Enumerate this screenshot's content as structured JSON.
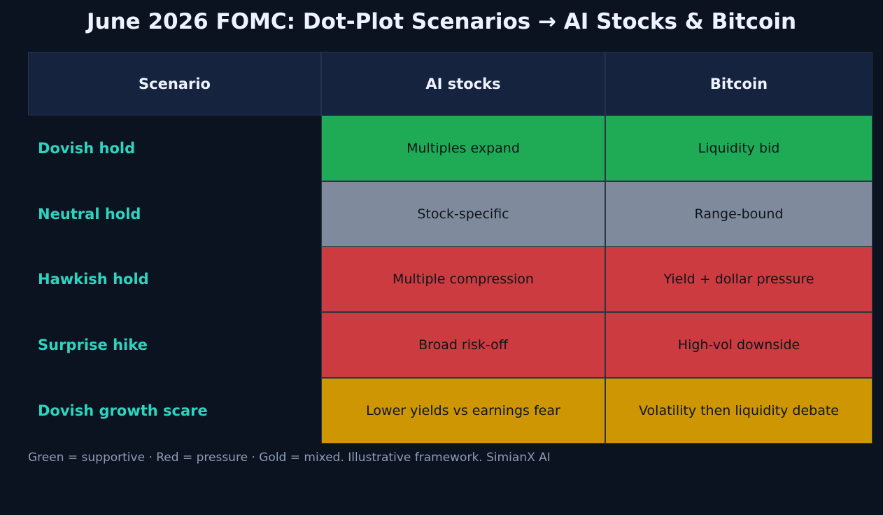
{
  "title": "June 2026 FOMC: Dot-Plot Scenarios → AI Stocks & Bitcoin",
  "footnote": "Green = supportive · Red = pressure · Gold = mixed. Illustrative framework. SimianX AI",
  "colors": {
    "background": "#0c1320",
    "header_bg": "#16233e",
    "scenario_text": "#2dd4bf",
    "supportive": "#1fab55",
    "neutral": "#7f8b9d",
    "pressure": "#cb3b3f",
    "mixed": "#ce9602"
  },
  "chart_data": {
    "type": "table",
    "columns": [
      "Scenario",
      "AI stocks",
      "Bitcoin"
    ],
    "rows": [
      {
        "scenario": "Dovish hold",
        "ai_stocks": "Multiples expand",
        "bitcoin": "Liquidity bid",
        "ai_tone": "supportive",
        "btc_tone": "supportive"
      },
      {
        "scenario": "Neutral hold",
        "ai_stocks": "Stock-specific",
        "bitcoin": "Range-bound",
        "ai_tone": "neutral",
        "btc_tone": "neutral"
      },
      {
        "scenario": "Hawkish hold",
        "ai_stocks": "Multiple compression",
        "bitcoin": "Yield + dollar pressure",
        "ai_tone": "pressure",
        "btc_tone": "pressure"
      },
      {
        "scenario": "Surprise hike",
        "ai_stocks": "Broad risk-off",
        "bitcoin": "High-vol downside",
        "ai_tone": "pressure",
        "btc_tone": "pressure"
      },
      {
        "scenario": "Dovish growth scare",
        "ai_stocks": "Lower yields vs earnings fear",
        "bitcoin": "Volatility then liquidity debate",
        "ai_tone": "mixed",
        "btc_tone": "mixed"
      }
    ]
  }
}
